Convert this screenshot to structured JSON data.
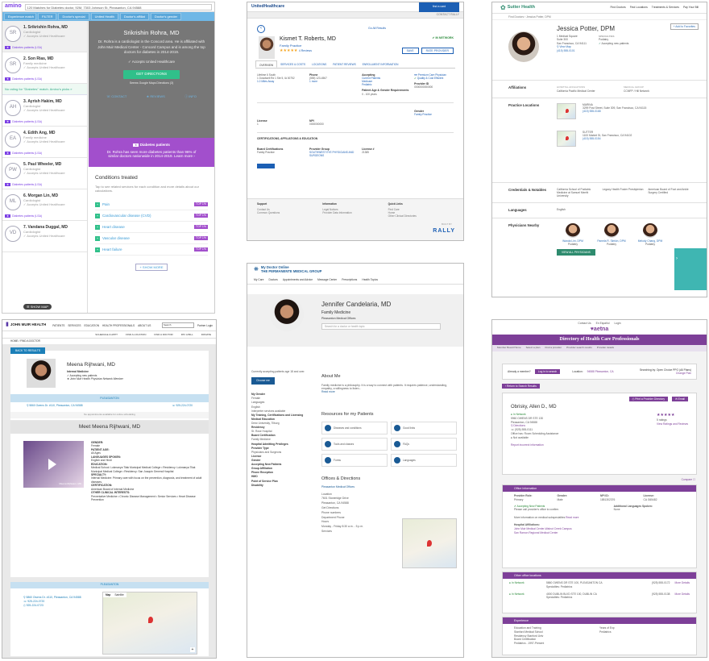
{
  "amino": {
    "logo": "amino",
    "search": "120 Matches for Diabetes doctor, 92M, 7303 Johnson St, Pleasanton, CA 94588",
    "chips": [
      "Experience match",
      "FILTER",
      "Doctor's special",
      "United Health",
      "Doctor's affiliat",
      "Doctor's gender"
    ],
    "doctors": [
      {
        "initials": "SR",
        "name": "1. Srikrishin Rohra, MD",
        "spec": "Cardiologist",
        "line": "Accepts United Healthcare",
        "tag": "Diabetes patients (LSA)"
      },
      {
        "initials": "SR",
        "name": "2. Son Rias, MD",
        "spec": "Family medicine",
        "line": "Accepts United Healthcare",
        "tag": "Diabetes patients (LSA)"
      },
      {
        "initials": "AH",
        "name": "3. Ayrish Hakim, MD",
        "spec": "Cardiologist",
        "line": "Accepts United Healthcare",
        "tag": "Diabetes patients (LSA)"
      },
      {
        "initials": "EA",
        "name": "4. Edith Ang, MD",
        "spec": "Family medicine",
        "line": "Accepts United Healthcare",
        "tag": "Diabetes patients (LSA)"
      },
      {
        "initials": "PW",
        "name": "5. Paul Wheeler, MD",
        "spec": "Cardiologist",
        "line": "Accepts United Healthcare",
        "tag": "Diabetes patients (LSA)"
      },
      {
        "initials": "ML",
        "name": "6. Morgan Lin, MD",
        "spec": "Cardiologist",
        "line": "Accepts United Healthcare",
        "tag": "Diabetes patients (LSA)"
      },
      {
        "initials": "VD",
        "name": "7. Vandana Duggal, MD",
        "spec": "Cardiologist",
        "line": "Accepts United Healthcare",
        "tag": ""
      }
    ],
    "note": "No rating for \"Diabetes\" match. Amino's picks »",
    "detail_name": "Srikrishin Rohra, MD",
    "detail_desc": "Dr. Rohra is a cardiologist in the Concord area. He is affiliated with John Muir Medical Center - Concord Campus and is among the top doctors for diabetes in 2014-2019.",
    "accepts": "Accepts United Healthcare",
    "get_directions": "GET DIRECTIONS",
    "accept_note": "Seems Google Maps Directions (3)",
    "contact": "CONTACT",
    "reviews": "REVIEWS",
    "info": "INFO",
    "purple_label": "Diabetes patients",
    "purple_text": "Dr. Rohra has seen more diabetes patients than 96% of similar doctors nationwide in 2014-2019. Learn more ›",
    "conditions_title": "Conditions treated",
    "conditions_desc": "Tap to see related services for each condition and more details about our calculations.",
    "conditions": [
      "Pain",
      "Cardiovascular disease (CVD)",
      "Heart disease",
      "Vascular disease",
      "Heart failure"
    ],
    "badge": "TOP 1%",
    "show_more": "+ SHOW MORE",
    "map_button": "☰ SHOW MAP"
  },
  "uhc": {
    "logo": "UnitedHealthcare",
    "top_btn": "find a card",
    "subbar_right": "CONTACT RALLY",
    "results_link": "Go All Results",
    "name": "Kismet T. Roberts, MD",
    "specialty": "Family Practice",
    "stars": "★★★★★",
    "reviews_count": "4 Reviews",
    "network": "IN NETWORK",
    "btn_save": "SAVE",
    "btn_rate": "RATE PROVIDER",
    "tabs": [
      "OVERVIEW",
      "SERVICES & COSTS",
      "LOCATIONS",
      "PATIENT REVIEWS",
      "ENROLLMENT INFORMATION"
    ],
    "addr_lines": [
      "Lifetime 6 South",
      "1 Dowdwell Rd 1 Ste 5, IA 00752",
      "1.0 Miles Away"
    ],
    "phone_label": "Phone",
    "phone": "(555) 123-4567",
    "phone_more": "1 more",
    "accept_label": "Accepting",
    "accept_lines": [
      "Current Patients",
      "Medicare",
      "Pediatric",
      "Pediatric"
    ],
    "premium": "Premium Care Physician",
    "quality": "Quality & Cost Efficient",
    "patient_age_label": "Patient Age & Gender Requirements",
    "patient_age": "0 - 100 years",
    "provider_id_label": "Provider ID",
    "provider_id": "0000000000000",
    "gender_label": "Gender",
    "gender_val": "Family Practice",
    "license_label": "License",
    "license_val": "1",
    "npi_label": "NPI",
    "npi_val": "0000000000",
    "cert_title": "CERTIFICATIONS, AFFILIATIONS & EDUCATION",
    "board_label": "Board Certifications",
    "board_val": "Family Practice",
    "group_label": "Provider Group",
    "group_val": "SOUTHWEST EYE PHYSICIANS AND SURGEONS",
    "lic_no_label": "License #",
    "lic_no_val": "21385",
    "footer": [
      {
        "h": "Support",
        "l": [
          "Contact Us",
          "Common Questions"
        ]
      },
      {
        "h": "Information",
        "l": [
          "Legal Notices",
          "Provider Data Information"
        ]
      },
      {
        "h": "Quick Links",
        "l": [
          "Find Care",
          "Home",
          "Other Clinical Directories"
        ]
      }
    ],
    "rally": "RALLY",
    "built_by": "BUILT BY"
  },
  "sutter": {
    "logo": "Sutter Health",
    "nav": [
      "Find Doctors",
      "Find Locations",
      "Treatments & Services",
      "Pay Your Bill"
    ],
    "breadcrumb": "Find Doctors › Jessica Potter, DPM",
    "favorite": "+ Add to Favorites",
    "name": "Jessica Potter, DPM",
    "address": [
      "1 Medical Square",
      "Suite 300",
      "San Francisco, CA 94111"
    ],
    "phone": "(415) 555-0101",
    "directions": "View Map",
    "spec_label": "SPECIALTIES",
    "spec": "Podiatry",
    "accepting": "Accepting new patients",
    "affiliations_label": "Affiliations",
    "aff1_h": "HOSPITAL AFFILIATIONS",
    "aff1": "California Pacific Medical Center",
    "aff2_h": "MEDICAL GROUP",
    "aff2": "CCMFP / Hill Network",
    "practice_label": "Practice Locations",
    "locations": [
      {
        "name": "MARINA",
        "addr": "3299 Post Street, Suite 309, San Francisco, CA 94115",
        "phone": "(415) 555-0168"
      },
      {
        "name": "SUTTER",
        "addr": "1100 Market St, San Francisco, CA 94102",
        "phone": "(415) 555-0154"
      }
    ],
    "cred_label": "Credentials & Notables",
    "cred": [
      "California School of Podiatric Medicine at Samuel Merritt University",
      "Legacy Health Foster Presbyterian",
      "American Board of Foot and Ankle Surgery Certified"
    ],
    "lang_label": "Languages",
    "lang": "English",
    "nearby_label": "Physicians Nearby",
    "nearby": [
      {
        "name": "Wanda Lim, DPM",
        "spec": "Podiatry"
      },
      {
        "name": "Pamela R. Simkin, DPM",
        "spec": "Podiatry"
      },
      {
        "name": "Melody Chang, DPM",
        "spec": "Podiatry"
      }
    ],
    "view_all": "VIEW ALL PHYSICIANS"
  },
  "kaiser": {
    "logo_line1": "My Doctor Online",
    "logo_line2": "THE PERMANENTE MEDICAL GROUP",
    "nav": [
      "My Care",
      "Doctors",
      "Appointments and Advice",
      "Message Center",
      "Prescriptions",
      "Health Topics"
    ],
    "print": "Print Profile",
    "name": "Jennifer Candelaria, MD",
    "specialty": "Family Medicine",
    "office": "Pleasanton Medical Offices",
    "search_placeholder": "Search for a doctor or health topic",
    "choose_intro": "Currently accepting patients age 18 and over.",
    "choose_btn": "Choose me",
    "left_sections": [
      "My Gender",
      "Female",
      "Languages",
      "English",
      "Interpreter services available",
      "My Training, Certifications and Licensing",
      "Medical Education",
      "Drew University, Tilburg",
      "Residency",
      "St. Rose Hospital",
      "Board Certification",
      "Family Medicine",
      "Hospital Admitting Privileges",
      "Provider Type",
      "Physicians and Surgeons",
      "License",
      "Gender",
      "Accepting New Patients",
      "Group Affiliation",
      "Phone Reception",
      "HMO",
      "Point of Service Plan",
      "Disability"
    ],
    "about_title": "About Me",
    "about_text": "Family medicine is a philosophy. It is a way to connect with patients. It requires patience, understanding, empathy, a willingness to listen...",
    "read_more": "Read more",
    "res_title": "Resources for my Patients",
    "resources": [
      "Diseases and conditions",
      "Good links",
      "Tools and classes",
      "FAQs",
      "Forms",
      "Languages"
    ],
    "offices_title": "Offices & Directions",
    "offices_link": "Pleasanton Medical Offices",
    "office_detail": [
      "Location",
      "7601 Stoneridge Drive",
      "Pleasanton, CA 94588",
      "Get Directions",
      "Phone numbers",
      "Department Phone",
      "Hours",
      "Monday - Friday 8:30 a.m. - 5 p.m.",
      "Services"
    ]
  },
  "jmuir": {
    "logo": "JOHN MUIR HEALTH",
    "nav": [
      "PATIENTS",
      "SERVICES",
      "EDUCATION",
      "HEALTH PROFESSIONALS",
      "ABOUT US"
    ],
    "search_placeholder": "Search",
    "login": "Partner Login",
    "sub": [
      "SCHEDULE & APPT",
      "FIND A LOCATION",
      "FIND A DOCTOR",
      "PAY A BILL",
      "DONATE"
    ],
    "breadcrumb": "HOME / FIND A DOCTOR",
    "back": "BACK TO RESULTS",
    "name": "Meena Rijhwani, MD",
    "info": [
      "Internal Medicine",
      "Accepting new patients",
      "John Muir Health Physician Network Member"
    ],
    "tab": "PLEASANTON",
    "address": "5860 Owens Dr. #110, Pleasanton, CA 94588",
    "phone": "925-224-0720",
    "no_appts": "No appointments available for online scheduling",
    "meet": "Meet Meena Rijhwani, MD",
    "video_caption": "Meena Rijhwani, MD",
    "bio": [
      {
        "h": "GENDER:",
        "t": "Female"
      },
      {
        "h": "PATIENT AGE:",
        "t": "All Ages"
      },
      {
        "h": "LANGUAGES SPOKEN:",
        "t": "English and Hindi"
      },
      {
        "h": "EDUCATION:",
        "t": "Medical School: Lokmanya Tilak Municipal Medical College • Residency: Lokmanya Tilak Municipal Medical College • Residency: San Joaquin General Hospital"
      },
      {
        "h": "SPECIALTY:",
        "t": "Internal Medicine: Primary care with focus on the prevention, diagnosis, and treatment of adult diseases."
      },
      {
        "h": "CERTIFICATION:",
        "t": "American Board of Internal Medicine"
      },
      {
        "h": "OTHER CLINICAL INTERESTS:",
        "t": "Preventative Medicine • Chronic Disease Management • Senior Services • Heart Disease Prevention"
      }
    ],
    "map_tabs": [
      "Map",
      "Satellite"
    ],
    "loc_lines": [
      "5860 Owens Dr. #110, Pleasanton, CA 94588",
      "925-224-0720",
      "925-224-0723"
    ]
  },
  "aetna": {
    "top": [
      "Contact Us",
      "En Español",
      "Login"
    ],
    "logo": "♥aetna",
    "title": "Directory of Health Care Professionals",
    "menu": [
      "Member Board Home",
      "Select a plan",
      "Find a provider",
      "Provider search results",
      "Provider details"
    ],
    "member_q": "Already a member?",
    "login_btn": "Log in to search",
    "location_label": "Location:",
    "location": "94588 Pleasanton, CA",
    "plan_note": "Searching by: Open Choice PPO (All Plans)",
    "change": "Change Plan",
    "return": "Return to Search Results",
    "print": "Print a Provider Directory",
    "email": "Email",
    "name": "Obrisky, Allen D., MD",
    "net": "In Network",
    "addr": [
      "5960 OWENS DR STE 130",
      "Pleasanton, CA 94588"
    ],
    "directions": "Directions",
    "phone": "(925) 555-0111",
    "office_note": "Office has: Room Scheduling Assistance",
    "not_avail": "Not available",
    "report": "Report incorrect information",
    "rating": "★★★★★",
    "rating_note": "5 ratings",
    "view_ratings": "View Ratings and Reviews",
    "compare": "Compare",
    "office_info": "Office Information",
    "prov_role_label": "Provider Role:",
    "prov_role": "Primary",
    "gender_label": "Gender:",
    "gender": "Male",
    "npi_label": "NPI ID:",
    "npi": "1851302376",
    "license_label": "License:",
    "license": "CA G65482",
    "accepting": "Accepting New Patients",
    "accept_note": "Please call provider's office to confirm.",
    "more_info": "More information on medical subspecialties",
    "read_more": "Read more",
    "lang_label": "Additional Languages Spoken:",
    "lang": "None",
    "hosp_label": "Hospital Affiliations:",
    "hosp": [
      "John Muir Medical Center-Walnut Creek Campus",
      "San Ramon Regional Medical Center"
    ],
    "other_label": "Other office locations",
    "others": [
      {
        "net": "In Network",
        "addr": "5860 OWENS DR STE 100, PLEASANTON CA",
        "phone": "(925) 555-0172",
        "sub": "Specialties: Pediatrics",
        "link": "More Details"
      },
      {
        "net": "In Network",
        "addr": "4000 DUBLIN BLVD STE 100, DUBLIN CA",
        "phone": "(925) 555-0138",
        "sub": "Specialties: Pediatrics",
        "link": "More Details"
      }
    ],
    "exp_label": "Experience",
    "exp_lines": [
      "Education and Training",
      "Stanford Medical School",
      "Residency Stanford Univ",
      "Board Certification",
      "Pediatrics - 1997-Present"
    ],
    "exp_right": [
      "Years of Exp",
      "Pediatrics"
    ],
    "colors": {
      "purple": "#7d3f98",
      "green": "#2a8a3a"
    }
  }
}
